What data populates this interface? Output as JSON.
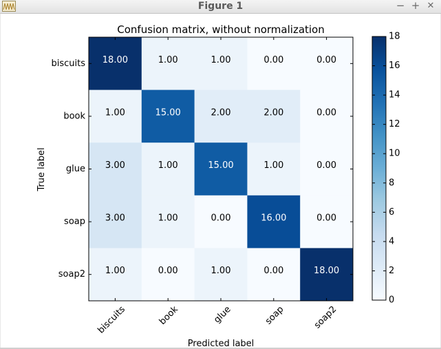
{
  "window": {
    "title": "Figure 1",
    "controls": {
      "minimize": "−",
      "maximize": "+",
      "close": "✕"
    }
  },
  "chart_data": {
    "type": "heatmap",
    "title": "Confusion matrix, without normalization",
    "xlabel": "Predicted label",
    "ylabel": "True label",
    "x_categories": [
      "biscuits",
      "book",
      "glue",
      "soap",
      "soap2"
    ],
    "y_categories": [
      "biscuits",
      "book",
      "glue",
      "soap",
      "soap2"
    ],
    "values": [
      [
        18,
        1,
        1,
        0,
        0
      ],
      [
        1,
        15,
        2,
        2,
        0
      ],
      [
        3,
        1,
        15,
        1,
        0
      ],
      [
        3,
        1,
        0,
        16,
        0
      ],
      [
        1,
        0,
        1,
        0,
        18
      ]
    ],
    "cell_labels": [
      [
        "18.00",
        "1.00",
        "1.00",
        "0.00",
        "0.00"
      ],
      [
        "1.00",
        "15.00",
        "2.00",
        "2.00",
        "0.00"
      ],
      [
        "3.00",
        "1.00",
        "15.00",
        "1.00",
        "0.00"
      ],
      [
        "3.00",
        "1.00",
        "0.00",
        "16.00",
        "0.00"
      ],
      [
        "1.00",
        "0.00",
        "1.00",
        "0.00",
        "18.00"
      ]
    ],
    "colormap": "Blues",
    "colormap_stops": [
      "#f7fbff",
      "#deebf7",
      "#c6dbef",
      "#9ecae1",
      "#6baed6",
      "#4292c6",
      "#2171b5",
      "#08519c",
      "#08306b"
    ],
    "vmin": 0,
    "vmax": 18,
    "text_threshold": 9,
    "text_colors": {
      "light": "#ffffff",
      "dark": "#000000"
    },
    "colorbar": {
      "ticks": [
        0,
        2,
        4,
        6,
        8,
        10,
        12,
        14,
        16,
        18
      ],
      "tick_labels": [
        "0",
        "2",
        "4",
        "6",
        "8",
        "10",
        "12",
        "14",
        "16",
        "18"
      ]
    }
  }
}
